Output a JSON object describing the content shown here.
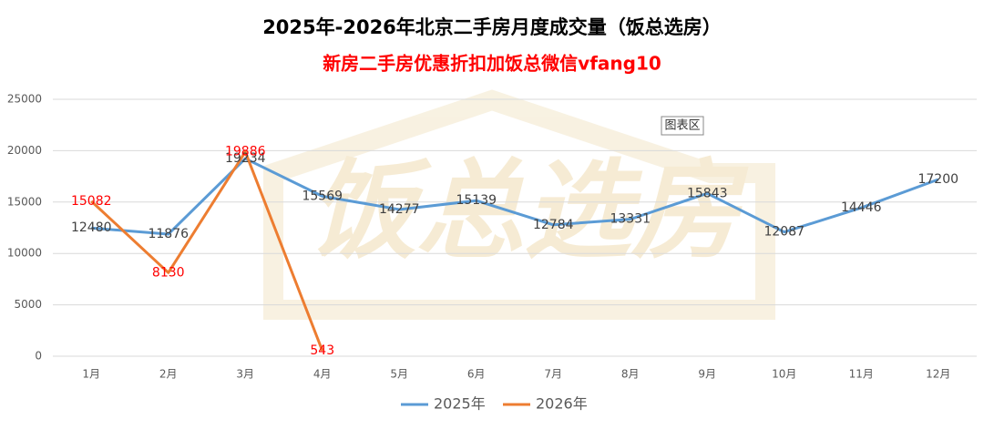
{
  "chart_data": {
    "type": "line",
    "title": "2025年-2026年北京二手房月度成交量（饭总选房）",
    "subtitle": "新房二手房优惠折扣加饭总微信vfang10",
    "watermark": "饭总选房",
    "tooltip": "图表区",
    "categories": [
      "1月",
      "2月",
      "3月",
      "4月",
      "5月",
      "6月",
      "7月",
      "8月",
      "9月",
      "10月",
      "11月",
      "12月"
    ],
    "series": [
      {
        "name": "2025年",
        "color": "#5b9bd5",
        "label_color": "#404040",
        "values": [
          12480,
          11876,
          19234,
          15569,
          14277,
          15139,
          12784,
          13331,
          15843,
          12087,
          14446,
          17200
        ]
      },
      {
        "name": "2026年",
        "color": "#ed7d31",
        "label_color": "#ff0000",
        "values": [
          15082,
          8130,
          19886,
          543,
          null,
          null,
          null,
          null,
          null,
          null,
          null,
          null
        ]
      }
    ],
    "ylim": [
      0,
      25000
    ],
    "yticks": [
      0,
      5000,
      10000,
      15000,
      20000,
      25000
    ],
    "grid": true,
    "legend": "bottom"
  }
}
